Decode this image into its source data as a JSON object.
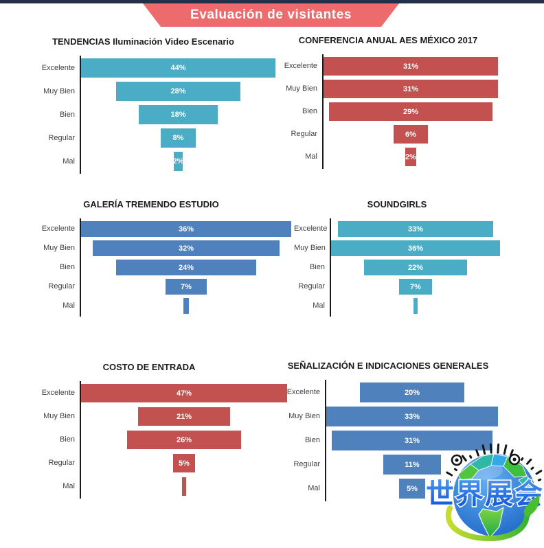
{
  "page": {
    "topbar_color": "#24304A",
    "background": "#FFFFFF",
    "axis_color": "#1A1A1A",
    "category_label_color": "#3F3F3F",
    "value_label_color": "#FFFFFF"
  },
  "banner": {
    "title": "Evaluación de visitantes",
    "color": "#ED6A6D",
    "text_color": "#FFFFFF"
  },
  "categories": [
    "Excelente",
    "Muy Bien",
    "Bien",
    "Regular",
    "Mal"
  ],
  "chart_data": [
    {
      "type": "bar",
      "variant": "horizontal-centered-funnel",
      "title": "TENDENCIAS Iluminación Video Escenario",
      "color": "#4BACC6",
      "categories": [
        "Excelente",
        "Muy Bien",
        "Bien",
        "Regular",
        "Mal"
      ],
      "values": [
        44,
        28,
        18,
        8,
        2
      ],
      "labels": [
        "44%",
        "28%",
        "18%",
        "8%",
        "2%"
      ],
      "max": 44,
      "unit": "%"
    },
    {
      "type": "bar",
      "variant": "horizontal-centered-funnel",
      "title": "CONFERENCIA ANUAL AES MÉXICO 2017",
      "color": "#C2514F",
      "categories": [
        "Excelente",
        "Muy Bien",
        "Bien",
        "Regular",
        "Mal"
      ],
      "values": [
        31,
        31,
        29,
        6,
        2
      ],
      "labels": [
        "31%",
        "31%",
        "29%",
        "6%",
        "2%"
      ],
      "max": 31,
      "unit": "%"
    },
    {
      "type": "bar",
      "variant": "horizontal-centered-funnel",
      "title": "GALERÍA TREMENDO ESTUDIO",
      "color": "#4F81BD",
      "categories": [
        "Excelente",
        "Muy Bien",
        "Bien",
        "Regular",
        "Mal"
      ],
      "values": [
        36,
        32,
        24,
        7,
        1
      ],
      "labels": [
        "36%",
        "32%",
        "24%",
        "7%",
        ""
      ],
      "max": 36,
      "unit": "%"
    },
    {
      "type": "bar",
      "variant": "horizontal-centered-funnel",
      "title": "SOUNDGIRLS",
      "color": "#4BACC6",
      "categories": [
        "Excelente",
        "Muy Bien",
        "Bien",
        "Regular",
        "Mal"
      ],
      "values": [
        33,
        36,
        22,
        7,
        1
      ],
      "labels": [
        "33%",
        "36%",
        "22%",
        "7%",
        ""
      ],
      "max": 36,
      "unit": "%"
    },
    {
      "type": "bar",
      "variant": "horizontal-centered-funnel",
      "title": "COSTO DE ENTRADA",
      "color": "#C2514F",
      "categories": [
        "Excelente",
        "Muy Bien",
        "Bien",
        "Regular",
        "Mal"
      ],
      "values": [
        47,
        21,
        26,
        5,
        1
      ],
      "labels": [
        "47%",
        "21%",
        "26%",
        "5%",
        ""
      ],
      "max": 47,
      "unit": "%"
    },
    {
      "type": "bar",
      "variant": "horizontal-centered-funnel",
      "title": "SEÑALIZACIÓN E INDICACIONES GENERALES",
      "color": "#4F81BD",
      "categories": [
        "Excelente",
        "Muy Bien",
        "Bien",
        "Regular",
        "Mal"
      ],
      "values": [
        20,
        33,
        31,
        11,
        5
      ],
      "labels": [
        "20%",
        "33%",
        "31%",
        "11%",
        "5%"
      ],
      "max": 33,
      "unit": "%"
    }
  ],
  "watermark": {
    "text": "世界展会",
    "text_color": "#1766E0",
    "globe_color": "#2E7FD4",
    "land_color": "#3FBE3F",
    "swoosh_color": "#55C23A",
    "marks_color": "#161616"
  }
}
